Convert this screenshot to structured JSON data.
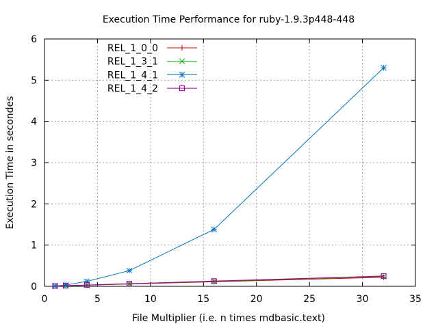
{
  "chart_data": {
    "type": "line",
    "title": "Execution Time Performance for ruby-1.9.3p448-448",
    "xlabel": "File Multiplier (i.e. n times mdbasic.text)",
    "ylabel": "Execution Time in secondes",
    "xlim": [
      0,
      35
    ],
    "ylim": [
      0,
      6
    ],
    "xticks": [
      0,
      5,
      10,
      15,
      20,
      25,
      30,
      35
    ],
    "yticks": [
      0,
      1,
      2,
      3,
      4,
      5,
      6
    ],
    "grid": true,
    "legend_position": "top-left",
    "series": [
      {
        "name": "REL_1_0_0",
        "color": "#c00000",
        "marker": "plus",
        "x": [
          1,
          2,
          4,
          8,
          16,
          32
        ],
        "y": [
          0.007,
          0.013,
          0.027,
          0.055,
          0.11,
          0.22
        ]
      },
      {
        "name": "REL_1_3_1",
        "color": "#00a000",
        "marker": "cross",
        "x": [
          1,
          2,
          4,
          8,
          16,
          32
        ],
        "y": [
          0.008,
          0.015,
          0.03,
          0.06,
          0.12,
          0.24
        ]
      },
      {
        "name": "REL_1_4_1",
        "color": "#0070c0",
        "marker": "star",
        "x": [
          1,
          2,
          4,
          8,
          16,
          32
        ],
        "y": [
          0.01,
          0.03,
          0.12,
          0.38,
          1.38,
          5.3
        ]
      },
      {
        "name": "REL_1_4_2",
        "color": "#a000a0",
        "marker": "square",
        "x": [
          1,
          2,
          4,
          8,
          16,
          32
        ],
        "y": [
          0.008,
          0.016,
          0.032,
          0.064,
          0.128,
          0.25
        ]
      }
    ]
  }
}
